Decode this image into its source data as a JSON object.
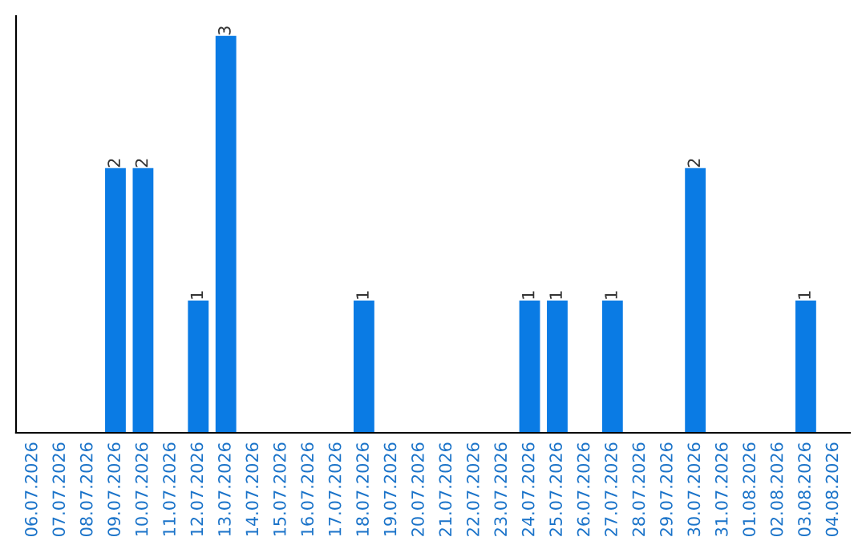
{
  "chart_data": {
    "type": "bar",
    "categories": [
      "06.07.2026",
      "07.07.2026",
      "08.07.2026",
      "09.07.2026",
      "10.07.2026",
      "11.07.2026",
      "12.07.2026",
      "13.07.2026",
      "14.07.2026",
      "15.07.2026",
      "16.07.2026",
      "17.07.2026",
      "18.07.2026",
      "19.07.2026",
      "20.07.2026",
      "21.07.2026",
      "22.07.2026",
      "23.07.2026",
      "24.07.2026",
      "25.07.2026",
      "26.07.2026",
      "27.07.2026",
      "28.07.2026",
      "29.07.2026",
      "30.07.2026",
      "31.07.2026",
      "01.08.2026",
      "02.08.2026",
      "03.08.2026",
      "04.08.2026"
    ],
    "values": [
      0,
      0,
      0,
      2,
      2,
      0,
      1,
      3,
      0,
      0,
      0,
      0,
      1,
      0,
      0,
      0,
      0,
      0,
      1,
      1,
      0,
      1,
      0,
      0,
      2,
      0,
      0,
      0,
      1,
      0
    ],
    "value_labels": [
      null,
      null,
      null,
      "2",
      "2",
      null,
      "1",
      "3",
      null,
      null,
      null,
      null,
      "1",
      null,
      null,
      null,
      null,
      null,
      "1",
      "1",
      null,
      "1",
      null,
      null,
      "2",
      null,
      null,
      null,
      "1",
      null
    ],
    "color": "#0a7be4",
    "grid": false
  }
}
